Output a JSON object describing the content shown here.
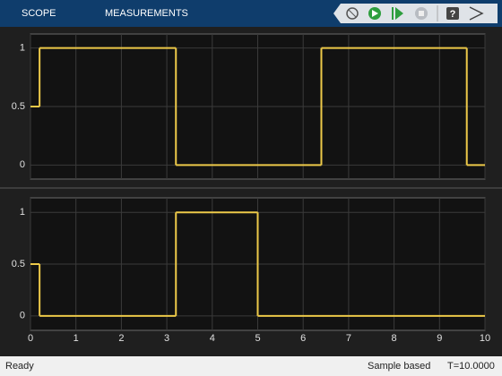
{
  "toolbar": {
    "tabs": [
      "SCOPE",
      "MEASUREMENTS"
    ]
  },
  "chart_data": [
    {
      "type": "line",
      "drawstyle": "steps-post",
      "x": [
        0,
        0.2,
        3.2,
        6.4,
        9.6
      ],
      "values": [
        0.5,
        1,
        0,
        1,
        0
      ],
      "color": "#edc949",
      "xlim": [
        0,
        10
      ],
      "ylim": [
        -0.12,
        1.12
      ],
      "xticks": [
        0,
        1,
        2,
        3,
        4,
        5,
        6,
        7,
        8,
        9,
        10
      ],
      "yticks": [
        0,
        0.5,
        1
      ],
      "grid": true,
      "xtick_labels": false
    },
    {
      "type": "line",
      "drawstyle": "steps-post",
      "x": [
        0,
        0.2,
        3.2,
        5
      ],
      "values": [
        0.5,
        0,
        1,
        0
      ],
      "color": "#edc949",
      "xlim": [
        0,
        10
      ],
      "ylim": [
        -0.14,
        1.14
      ],
      "xticks": [
        0,
        1,
        2,
        3,
        4,
        5,
        6,
        7,
        8,
        9,
        10
      ],
      "yticks": [
        0,
        0.5,
        1
      ],
      "grid": true,
      "xtick_labels": true
    }
  ],
  "status_bar": {
    "state": "Ready",
    "mode": "Sample based",
    "time": "T=10.0000"
  }
}
